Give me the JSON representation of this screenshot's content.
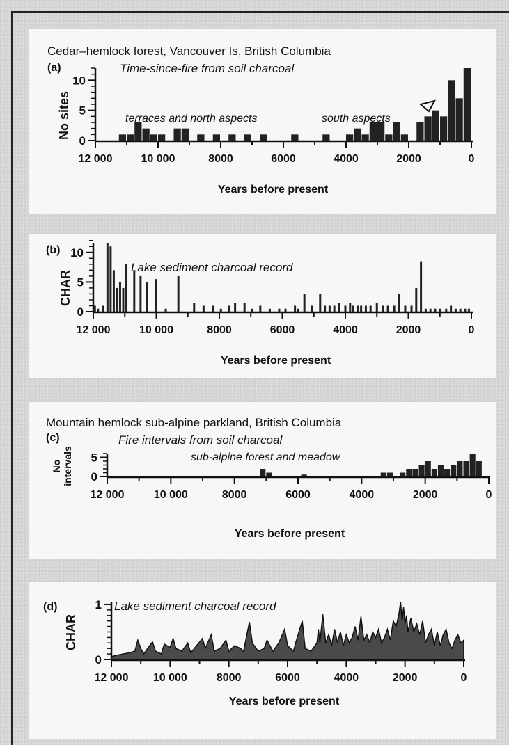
{
  "chart_data": [
    {
      "id": "a",
      "type": "bar",
      "title": "Cedar–hemlock forest, Vancouver Is, British Columbia",
      "panel_letter": "(a)",
      "subtitle": "Time-since-fire from soil charcoal",
      "annotations": [
        "terraces and north aspects",
        "south aspects"
      ],
      "ylabel": "No sites",
      "xlabel": "Years before present",
      "xlim": [
        12000,
        0
      ],
      "ylim": [
        0,
        12
      ],
      "xticks": [
        12000,
        10000,
        8000,
        6000,
        4000,
        2000,
        0
      ],
      "xtick_labels": [
        "12 000",
        "10 000",
        "8000",
        "6000",
        "4000",
        "2000",
        "0"
      ],
      "yticks": [
        0,
        5,
        10
      ],
      "ytick_labels": [
        "0",
        "5",
        "10"
      ],
      "bin_width": 250,
      "bars": [
        [
          11000,
          1
        ],
        [
          10750,
          1
        ],
        [
          10500,
          3
        ],
        [
          10250,
          2
        ],
        [
          10000,
          1
        ],
        [
          9750,
          1
        ],
        [
          9250,
          2
        ],
        [
          9000,
          2
        ],
        [
          8500,
          1
        ],
        [
          8000,
          1
        ],
        [
          7500,
          1
        ],
        [
          7000,
          1
        ],
        [
          6500,
          1
        ],
        [
          5500,
          1
        ],
        [
          4500,
          1
        ],
        [
          3750,
          1
        ],
        [
          3500,
          2
        ],
        [
          3250,
          1
        ],
        [
          3000,
          3
        ],
        [
          2750,
          3
        ],
        [
          2500,
          1
        ],
        [
          2250,
          3
        ],
        [
          2000,
          1
        ],
        [
          1500,
          3
        ],
        [
          1250,
          4
        ],
        [
          1000,
          5
        ],
        [
          750,
          4
        ],
        [
          500,
          10
        ],
        [
          250,
          7
        ],
        [
          0,
          12
        ]
      ]
    },
    {
      "id": "b",
      "type": "bar",
      "panel_letter": "(b)",
      "subtitle": "Lake sediment charcoal record",
      "ylabel": "CHAR",
      "xlabel": "Years before present",
      "xlim": [
        12000,
        0
      ],
      "ylim": [
        0,
        12
      ],
      "xticks": [
        12000,
        10000,
        8000,
        6000,
        4000,
        2000,
        0
      ],
      "xtick_labels": [
        "12 000",
        "10 000",
        "8000",
        "6000",
        "4000",
        "2000",
        "0"
      ],
      "yticks": [
        0,
        5,
        10
      ],
      "ytick_labels": [
        "0",
        "5",
        "10"
      ],
      "spikes": [
        [
          11950,
          1
        ],
        [
          11850,
          0.5
        ],
        [
          11700,
          1
        ],
        [
          11550,
          11.5
        ],
        [
          11450,
          11
        ],
        [
          11350,
          7
        ],
        [
          11250,
          4
        ],
        [
          11150,
          5
        ],
        [
          11050,
          4
        ],
        [
          10950,
          8
        ],
        [
          10700,
          7
        ],
        [
          10500,
          6
        ],
        [
          10300,
          5
        ],
        [
          10000,
          5.5
        ],
        [
          9700,
          0.5
        ],
        [
          9300,
          6
        ],
        [
          8800,
          1.5
        ],
        [
          8500,
          1
        ],
        [
          8200,
          1
        ],
        [
          7950,
          0.5
        ],
        [
          7700,
          1
        ],
        [
          7500,
          1.5
        ],
        [
          7200,
          1.5
        ],
        [
          6950,
          0.5
        ],
        [
          6700,
          1
        ],
        [
          6400,
          0.5
        ],
        [
          6100,
          0.5
        ],
        [
          5900,
          0.5
        ],
        [
          5600,
          1
        ],
        [
          5500,
          0.5
        ],
        [
          5300,
          3
        ],
        [
          5050,
          1
        ],
        [
          4800,
          3
        ],
        [
          4650,
          1
        ],
        [
          4500,
          1
        ],
        [
          4350,
          1
        ],
        [
          4200,
          1.5
        ],
        [
          4000,
          1
        ],
        [
          3850,
          1.5
        ],
        [
          3750,
          1
        ],
        [
          3600,
          1
        ],
        [
          3500,
          1
        ],
        [
          3350,
          1
        ],
        [
          3200,
          1
        ],
        [
          3000,
          1.5
        ],
        [
          2800,
          1
        ],
        [
          2650,
          1
        ],
        [
          2450,
          1
        ],
        [
          2300,
          3
        ],
        [
          2100,
          1
        ],
        [
          1900,
          1
        ],
        [
          1750,
          4
        ],
        [
          1600,
          8.5
        ],
        [
          1450,
          0.5
        ],
        [
          1300,
          0.5
        ],
        [
          1150,
          0.5
        ],
        [
          1000,
          0.5
        ],
        [
          800,
          0.5
        ],
        [
          650,
          1
        ],
        [
          500,
          0.5
        ],
        [
          350,
          0.5
        ],
        [
          200,
          0.5
        ],
        [
          80,
          0.5
        ]
      ]
    },
    {
      "id": "c",
      "type": "bar",
      "title": "Mountain hemlock sub-alpine parkland, British Columbia",
      "panel_letter": "(c)",
      "subtitle": "Fire intervals from soil charcoal",
      "annotations": [
        "sub-alpine forest and meadow"
      ],
      "ylabel": "No intervals",
      "xlabel": "Years before present",
      "xlim": [
        12000,
        0
      ],
      "ylim": [
        0,
        6
      ],
      "xticks": [
        12000,
        10000,
        8000,
        6000,
        4000,
        2000,
        0
      ],
      "xtick_labels": [
        "12 000",
        "10 000",
        "8000",
        "6000",
        "4000",
        "2000",
        "0"
      ],
      "yticks": [
        0,
        5
      ],
      "ytick_labels": [
        "0",
        "5"
      ],
      "bin_width": 200,
      "bars": [
        [
          7000,
          2
        ],
        [
          6800,
          1
        ],
        [
          5700,
          0.5
        ],
        [
          3200,
          1
        ],
        [
          3000,
          1
        ],
        [
          2600,
          1
        ],
        [
          2400,
          2
        ],
        [
          2200,
          2
        ],
        [
          2000,
          3
        ],
        [
          1800,
          4
        ],
        [
          1600,
          2
        ],
        [
          1400,
          3
        ],
        [
          1200,
          2
        ],
        [
          1000,
          3
        ],
        [
          800,
          4
        ],
        [
          600,
          4
        ],
        [
          400,
          6
        ],
        [
          200,
          4
        ]
      ]
    },
    {
      "id": "d",
      "type": "area",
      "panel_letter": "(d)",
      "subtitle": "Lake sediment charcoal record",
      "ylabel": "CHAR",
      "xlabel": "Years before present",
      "xlim": [
        12000,
        0
      ],
      "ylim": [
        0,
        1
      ],
      "xticks": [
        12000,
        10000,
        8000,
        6000,
        4000,
        2000,
        0
      ],
      "xtick_labels": [
        "12 000",
        "10 000",
        "8000",
        "6000",
        "4000",
        "2000",
        "0"
      ],
      "yticks": [
        0,
        1
      ],
      "ytick_labels": [
        "0",
        "1"
      ],
      "points": [
        [
          12000,
          0.05
        ],
        [
          11800,
          0.08
        ],
        [
          11600,
          0.1
        ],
        [
          11400,
          0.12
        ],
        [
          11200,
          0.15
        ],
        [
          11100,
          0.35
        ],
        [
          11000,
          0.2
        ],
        [
          10900,
          0.1
        ],
        [
          10700,
          0.25
        ],
        [
          10600,
          0.32
        ],
        [
          10500,
          0.15
        ],
        [
          10300,
          0.1
        ],
        [
          10200,
          0.28
        ],
        [
          10000,
          0.22
        ],
        [
          9900,
          0.38
        ],
        [
          9800,
          0.2
        ],
        [
          9600,
          0.15
        ],
        [
          9400,
          0.3
        ],
        [
          9300,
          0.12
        ],
        [
          9100,
          0.25
        ],
        [
          8900,
          0.38
        ],
        [
          8800,
          0.2
        ],
        [
          8600,
          0.45
        ],
        [
          8500,
          0.15
        ],
        [
          8300,
          0.2
        ],
        [
          8100,
          0.35
        ],
        [
          8000,
          0.15
        ],
        [
          7800,
          0.25
        ],
        [
          7600,
          0.2
        ],
        [
          7500,
          0.15
        ],
        [
          7300,
          0.68
        ],
        [
          7200,
          0.3
        ],
        [
          7000,
          0.15
        ],
        [
          6800,
          0.2
        ],
        [
          6700,
          0.35
        ],
        [
          6500,
          0.15
        ],
        [
          6300,
          0.3
        ],
        [
          6100,
          0.55
        ],
        [
          6000,
          0.25
        ],
        [
          5800,
          0.15
        ],
        [
          5700,
          0.35
        ],
        [
          5500,
          0.7
        ],
        [
          5400,
          0.2
        ],
        [
          5200,
          0.15
        ],
        [
          5000,
          0.3
        ],
        [
          4950,
          0.55
        ],
        [
          4900,
          0.3
        ],
        [
          4800,
          0.82
        ],
        [
          4700,
          0.3
        ],
        [
          4600,
          0.45
        ],
        [
          4500,
          0.25
        ],
        [
          4400,
          0.55
        ],
        [
          4300,
          0.3
        ],
        [
          4200,
          0.5
        ],
        [
          4100,
          0.25
        ],
        [
          4000,
          0.45
        ],
        [
          3900,
          0.3
        ],
        [
          3800,
          0.4
        ],
        [
          3700,
          0.6
        ],
        [
          3600,
          0.35
        ],
        [
          3500,
          0.78
        ],
        [
          3400,
          0.35
        ],
        [
          3300,
          0.45
        ],
        [
          3200,
          0.3
        ],
        [
          3100,
          0.5
        ],
        [
          3000,
          0.4
        ],
        [
          2900,
          0.55
        ],
        [
          2800,
          0.3
        ],
        [
          2700,
          0.4
        ],
        [
          2600,
          0.55
        ],
        [
          2500,
          0.35
        ],
        [
          2400,
          0.7
        ],
        [
          2300,
          0.6
        ],
        [
          2200,
          0.85
        ],
        [
          2150,
          1.05
        ],
        [
          2100,
          0.7
        ],
        [
          2050,
          0.95
        ],
        [
          2000,
          0.65
        ],
        [
          1950,
          0.8
        ],
        [
          1900,
          0.5
        ],
        [
          1800,
          0.75
        ],
        [
          1700,
          0.5
        ],
        [
          1600,
          0.65
        ],
        [
          1500,
          0.45
        ],
        [
          1400,
          0.7
        ],
        [
          1300,
          0.3
        ],
        [
          1200,
          0.45
        ],
        [
          1100,
          0.55
        ],
        [
          1000,
          0.25
        ],
        [
          900,
          0.5
        ],
        [
          800,
          0.25
        ],
        [
          700,
          0.45
        ],
        [
          600,
          0.55
        ],
        [
          500,
          0.3
        ],
        [
          400,
          0.2
        ],
        [
          300,
          0.35
        ],
        [
          200,
          0.45
        ],
        [
          100,
          0.3
        ],
        [
          0,
          0.35
        ]
      ]
    }
  ]
}
